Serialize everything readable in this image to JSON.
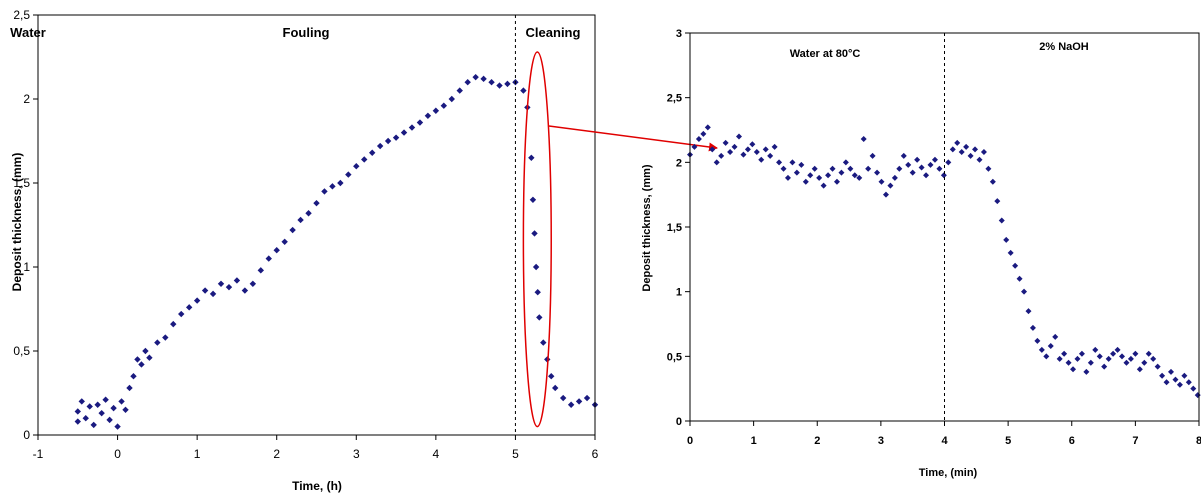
{
  "colors": {
    "marker": "#1a1a80",
    "frame": "#000000",
    "annotation": "#e00000",
    "divider": "#000000"
  },
  "chart_data": [
    {
      "type": "scatter",
      "xlabel": "Time, (h)",
      "ylabel": "Deposit thickness, (mm)",
      "xlim": [
        -1,
        6
      ],
      "ylim": [
        0,
        2.5
      ],
      "x_ticks": [
        "-1",
        "0",
        "1",
        "2",
        "3",
        "4",
        "5",
        "6"
      ],
      "y_ticks": [
        "0",
        "0,5",
        "1",
        "1,5",
        "2",
        "2,5"
      ],
      "phase_labels": [
        "Water",
        "Fouling",
        "Cleaning"
      ],
      "divider_x": 5.0,
      "highlight": {
        "x_range": [
          5.1,
          5.45
        ],
        "y_range": [
          0.05,
          2.28
        ],
        "label_target": "cleaning-phase"
      },
      "series": [
        {
          "points": [
            [
              -0.5,
              0.08
            ],
            [
              -0.5,
              0.14
            ],
            [
              -0.45,
              0.2
            ],
            [
              -0.4,
              0.1
            ],
            [
              -0.35,
              0.17
            ],
            [
              -0.3,
              0.06
            ],
            [
              -0.25,
              0.18
            ],
            [
              -0.2,
              0.13
            ],
            [
              -0.15,
              0.21
            ],
            [
              -0.1,
              0.09
            ],
            [
              -0.05,
              0.16
            ],
            [
              0.0,
              0.05
            ],
            [
              0.05,
              0.2
            ],
            [
              0.1,
              0.15
            ],
            [
              0.15,
              0.28
            ],
            [
              0.2,
              0.35
            ],
            [
              0.25,
              0.45
            ],
            [
              0.3,
              0.42
            ],
            [
              0.35,
              0.5
            ],
            [
              0.4,
              0.46
            ],
            [
              0.5,
              0.55
            ],
            [
              0.6,
              0.58
            ],
            [
              0.7,
              0.66
            ],
            [
              0.8,
              0.72
            ],
            [
              0.9,
              0.76
            ],
            [
              1.0,
              0.8
            ],
            [
              1.1,
              0.86
            ],
            [
              1.2,
              0.84
            ],
            [
              1.3,
              0.9
            ],
            [
              1.4,
              0.88
            ],
            [
              1.5,
              0.92
            ],
            [
              1.6,
              0.86
            ],
            [
              1.7,
              0.9
            ],
            [
              1.8,
              0.98
            ],
            [
              1.9,
              1.05
            ],
            [
              2.0,
              1.1
            ],
            [
              2.1,
              1.15
            ],
            [
              2.2,
              1.22
            ],
            [
              2.3,
              1.28
            ],
            [
              2.4,
              1.32
            ],
            [
              2.5,
              1.38
            ],
            [
              2.6,
              1.45
            ],
            [
              2.7,
              1.48
            ],
            [
              2.8,
              1.5
            ],
            [
              2.9,
              1.55
            ],
            [
              3.0,
              1.6
            ],
            [
              3.1,
              1.64
            ],
            [
              3.2,
              1.68
            ],
            [
              3.3,
              1.72
            ],
            [
              3.4,
              1.75
            ],
            [
              3.5,
              1.77
            ],
            [
              3.6,
              1.8
            ],
            [
              3.7,
              1.83
            ],
            [
              3.8,
              1.86
            ],
            [
              3.9,
              1.9
            ],
            [
              4.0,
              1.93
            ],
            [
              4.1,
              1.96
            ],
            [
              4.2,
              2.0
            ],
            [
              4.3,
              2.05
            ],
            [
              4.4,
              2.1
            ],
            [
              4.5,
              2.13
            ],
            [
              4.6,
              2.12
            ],
            [
              4.7,
              2.1
            ],
            [
              4.8,
              2.08
            ],
            [
              4.9,
              2.09
            ],
            [
              5.0,
              2.1
            ],
            [
              5.1,
              2.05
            ],
            [
              5.15,
              1.95
            ],
            [
              5.2,
              1.65
            ],
            [
              5.22,
              1.4
            ],
            [
              5.24,
              1.2
            ],
            [
              5.26,
              1.0
            ],
            [
              5.28,
              0.85
            ],
            [
              5.3,
              0.7
            ],
            [
              5.35,
              0.55
            ],
            [
              5.4,
              0.45
            ],
            [
              5.45,
              0.35
            ],
            [
              5.5,
              0.28
            ],
            [
              5.6,
              0.22
            ],
            [
              5.7,
              0.18
            ],
            [
              5.8,
              0.2
            ],
            [
              5.9,
              0.22
            ],
            [
              6.0,
              0.18
            ]
          ]
        }
      ]
    },
    {
      "type": "scatter",
      "xlabel": "Time, (min)",
      "ylabel": "Deposit thickness, (mm)",
      "xlim": [
        0,
        8
      ],
      "ylim": [
        0,
        3
      ],
      "x_ticks": [
        "0",
        "1",
        "2",
        "3",
        "4",
        "5",
        "6",
        "7",
        "8"
      ],
      "y_ticks": [
        "0",
        "0,5",
        "1",
        "1,5",
        "2",
        "2,5",
        "3"
      ],
      "phase_labels": [
        "Water at 80°C",
        "2% NaOH"
      ],
      "divider_x": 4.0,
      "series": [
        {
          "points": [
            [
              0.0,
              2.06
            ],
            [
              0.07,
              2.12
            ],
            [
              0.14,
              2.18
            ],
            [
              0.21,
              2.22
            ],
            [
              0.28,
              2.27
            ],
            [
              0.35,
              2.1
            ],
            [
              0.42,
              2.0
            ],
            [
              0.49,
              2.05
            ],
            [
              0.56,
              2.15
            ],
            [
              0.63,
              2.08
            ],
            [
              0.7,
              2.12
            ],
            [
              0.77,
              2.2
            ],
            [
              0.84,
              2.06
            ],
            [
              0.91,
              2.1
            ],
            [
              0.98,
              2.14
            ],
            [
              1.05,
              2.08
            ],
            [
              1.12,
              2.02
            ],
            [
              1.19,
              2.1
            ],
            [
              1.26,
              2.05
            ],
            [
              1.33,
              2.12
            ],
            [
              1.4,
              2.0
            ],
            [
              1.47,
              1.95
            ],
            [
              1.54,
              1.88
            ],
            [
              1.61,
              2.0
            ],
            [
              1.68,
              1.92
            ],
            [
              1.75,
              1.98
            ],
            [
              1.82,
              1.85
            ],
            [
              1.89,
              1.9
            ],
            [
              1.96,
              1.95
            ],
            [
              2.03,
              1.88
            ],
            [
              2.1,
              1.82
            ],
            [
              2.17,
              1.9
            ],
            [
              2.24,
              1.95
            ],
            [
              2.31,
              1.85
            ],
            [
              2.38,
              1.92
            ],
            [
              2.45,
              2.0
            ],
            [
              2.52,
              1.95
            ],
            [
              2.59,
              1.9
            ],
            [
              2.66,
              1.88
            ],
            [
              2.73,
              2.18
            ],
            [
              2.8,
              1.95
            ],
            [
              2.87,
              2.05
            ],
            [
              2.94,
              1.92
            ],
            [
              3.01,
              1.85
            ],
            [
              3.08,
              1.75
            ],
            [
              3.15,
              1.82
            ],
            [
              3.22,
              1.88
            ],
            [
              3.29,
              1.95
            ],
            [
              3.36,
              2.05
            ],
            [
              3.43,
              1.98
            ],
            [
              3.5,
              1.92
            ],
            [
              3.57,
              2.02
            ],
            [
              3.64,
              1.96
            ],
            [
              3.71,
              1.9
            ],
            [
              3.78,
              1.98
            ],
            [
              3.85,
              2.02
            ],
            [
              3.92,
              1.95
            ],
            [
              3.99,
              1.9
            ],
            [
              4.06,
              2.0
            ],
            [
              4.13,
              2.1
            ],
            [
              4.2,
              2.15
            ],
            [
              4.27,
              2.08
            ],
            [
              4.34,
              2.12
            ],
            [
              4.41,
              2.05
            ],
            [
              4.48,
              2.1
            ],
            [
              4.55,
              2.02
            ],
            [
              4.62,
              2.08
            ],
            [
              4.69,
              1.95
            ],
            [
              4.76,
              1.85
            ],
            [
              4.83,
              1.7
            ],
            [
              4.9,
              1.55
            ],
            [
              4.97,
              1.4
            ],
            [
              5.04,
              1.3
            ],
            [
              5.11,
              1.2
            ],
            [
              5.18,
              1.1
            ],
            [
              5.25,
              1.0
            ],
            [
              5.32,
              0.85
            ],
            [
              5.39,
              0.72
            ],
            [
              5.46,
              0.62
            ],
            [
              5.53,
              0.55
            ],
            [
              5.6,
              0.5
            ],
            [
              5.67,
              0.58
            ],
            [
              5.74,
              0.65
            ],
            [
              5.81,
              0.48
            ],
            [
              5.88,
              0.52
            ],
            [
              5.95,
              0.45
            ],
            [
              6.02,
              0.4
            ],
            [
              6.09,
              0.48
            ],
            [
              6.16,
              0.52
            ],
            [
              6.23,
              0.38
            ],
            [
              6.3,
              0.45
            ],
            [
              6.37,
              0.55
            ],
            [
              6.44,
              0.5
            ],
            [
              6.51,
              0.42
            ],
            [
              6.58,
              0.48
            ],
            [
              6.65,
              0.52
            ],
            [
              6.72,
              0.55
            ],
            [
              6.79,
              0.5
            ],
            [
              6.86,
              0.45
            ],
            [
              6.93,
              0.48
            ],
            [
              7.0,
              0.52
            ],
            [
              7.07,
              0.4
            ],
            [
              7.14,
              0.45
            ],
            [
              7.21,
              0.52
            ],
            [
              7.28,
              0.48
            ],
            [
              7.35,
              0.42
            ],
            [
              7.42,
              0.35
            ],
            [
              7.49,
              0.3
            ],
            [
              7.56,
              0.38
            ],
            [
              7.63,
              0.32
            ],
            [
              7.7,
              0.28
            ],
            [
              7.77,
              0.35
            ],
            [
              7.84,
              0.3
            ],
            [
              7.91,
              0.25
            ],
            [
              7.98,
              0.2
            ]
          ]
        }
      ]
    }
  ]
}
